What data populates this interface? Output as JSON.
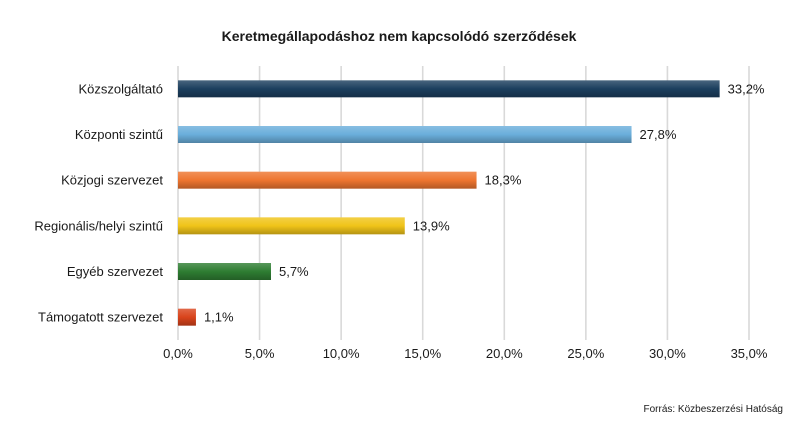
{
  "chart_data": {
    "type": "bar",
    "orientation": "horizontal",
    "title": "Keretmegállapodáshoz  nem kapcsolódó szerződések",
    "categories": [
      "Közszolgáltató",
      "Központi szintű",
      "Közjogi szervezet",
      "Regionális/helyi szintű",
      "Egyéb szervezet",
      "Támogatott szervezet"
    ],
    "values": [
      33.2,
      27.8,
      18.3,
      13.9,
      5.7,
      1.1
    ],
    "value_labels": [
      "33,2%",
      "27,8%",
      "18,3%",
      "13,9%",
      "5,7%",
      "1,1%"
    ],
    "colors": [
      "#1c3f5e",
      "#6aaedb",
      "#ee7530",
      "#f0c419",
      "#2e7d32",
      "#d9441c"
    ],
    "xlim": [
      0,
      35
    ],
    "xticks": [
      0,
      5,
      10,
      15,
      20,
      25,
      30,
      35
    ],
    "xtick_labels": [
      "0,0%",
      "5,0%",
      "10,0%",
      "15,0%",
      "20,0%",
      "25,0%",
      "30,0%",
      "35,0%"
    ],
    "grid": true,
    "legend": "none",
    "source": "Forrás: Közbeszerzési  Hatóság"
  }
}
